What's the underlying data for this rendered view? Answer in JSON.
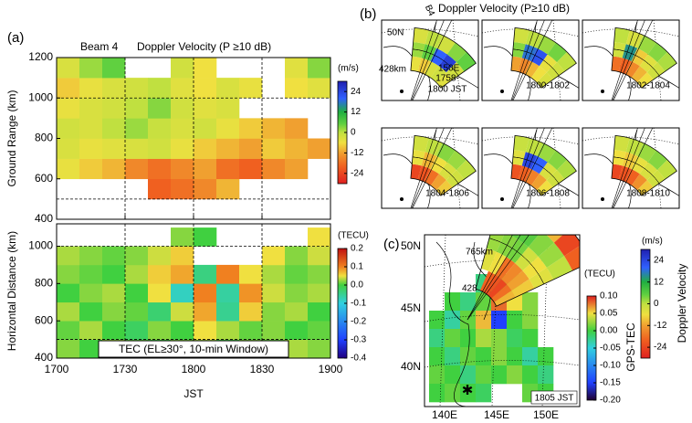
{
  "chart_data": [
    {
      "type": "heatmap",
      "panel_label": "(a)",
      "subtitle": "Beam 4",
      "title": "Doppler Velocity (P ≥10 dB)",
      "ylabel": "Ground Range (km)",
      "xlim": [
        0,
        120
      ],
      "xticks": [
        {
          "value": 0,
          "label": "1700"
        },
        {
          "value": 30,
          "label": "1730"
        },
        {
          "value": 60,
          "label": "1800"
        },
        {
          "value": 90,
          "label": "1830"
        },
        {
          "value": 120,
          "label": "1900"
        }
      ],
      "ylim": [
        400,
        1200
      ],
      "yticks": [
        400,
        600,
        800,
        1000,
        1200
      ],
      "hlines": [
        500,
        1000
      ],
      "x_edges": [
        0,
        10,
        20,
        30,
        40,
        50,
        60,
        70,
        80,
        90,
        100,
        110,
        120
      ],
      "y_edges": [
        400,
        500,
        600,
        700,
        800,
        900,
        1000,
        1100,
        1200
      ],
      "values": [
        [
          null,
          null,
          null,
          null,
          null,
          null,
          null,
          null,
          null,
          null,
          null,
          null
        ],
        [
          null,
          null,
          null,
          null,
          -20,
          -18,
          -15,
          -10,
          null,
          null,
          null,
          null
        ],
        [
          -5,
          -8,
          -10,
          -15,
          -18,
          -15,
          -12,
          -18,
          -20,
          -15,
          -12,
          null
        ],
        [
          -3,
          -5,
          -4,
          -3,
          -2,
          -5,
          -8,
          -10,
          -12,
          -8,
          -10,
          -12
        ],
        [
          -2,
          -3,
          0,
          2,
          -1,
          -3,
          -2,
          -5,
          -8,
          -10,
          -12,
          null
        ],
        [
          -5,
          -3,
          -2,
          0,
          3,
          -2,
          -4,
          -3,
          null,
          null,
          null,
          null
        ],
        [
          -8,
          -5,
          -3,
          -2,
          0,
          -4,
          -6,
          -3,
          -5,
          null,
          -6,
          -4
        ],
        [
          -3,
          2,
          5,
          null,
          null,
          -2,
          -6,
          null,
          null,
          null,
          -4,
          3
        ]
      ],
      "colorbar_label": "(m/s)",
      "clim": [
        -30,
        30
      ],
      "cticks": [
        24,
        12,
        0,
        -12,
        -24
      ],
      "colormap": [
        {
          "value": -30,
          "color": "#e02020"
        },
        {
          "value": -20,
          "color": "#f06020"
        },
        {
          "value": -12,
          "color": "#f0a030"
        },
        {
          "value": -6,
          "color": "#f0e040"
        },
        {
          "value": 0,
          "color": "#c0e040"
        },
        {
          "value": 5,
          "color": "#60d040"
        },
        {
          "value": 12,
          "color": "#20b040"
        },
        {
          "value": 20,
          "color": "#3060ff"
        },
        {
          "value": 30,
          "color": "#2020b0"
        }
      ]
    },
    {
      "type": "heatmap",
      "ylabel": "Horizontal Distance (km)",
      "xlabel": "JST",
      "annotation": "TEC (EL≥30°, 10-min Window)",
      "xlim": [
        0,
        120
      ],
      "ylim": [
        400,
        1120
      ],
      "yticks": [
        400,
        600,
        800,
        1000
      ],
      "hlines": [
        500,
        1000
      ],
      "x_edges": [
        0,
        10,
        20,
        30,
        40,
        50,
        60,
        70,
        80,
        90,
        100,
        110,
        120
      ],
      "y_edges": [
        400,
        500,
        600,
        700,
        800,
        900,
        1000,
        1100
      ],
      "values": [
        [
          0.02,
          0.0,
          0.03,
          0.01,
          0.0,
          0.02,
          0.03,
          0.0,
          0.02,
          0.01,
          0.03,
          0.02
        ],
        [
          0.01,
          0.03,
          0.0,
          -0.02,
          0.02,
          0.0,
          0.05,
          0.03,
          0.01,
          0.02,
          0.0,
          0.01
        ],
        [
          0.03,
          0.0,
          0.02,
          0.01,
          -0.03,
          0.04,
          0.08,
          -0.05,
          0.06,
          0.02,
          0.03,
          0.0
        ],
        [
          0.0,
          0.02,
          0.03,
          0.0,
          0.05,
          -0.08,
          0.1,
          -0.06,
          0.09,
          0.04,
          0.02,
          0.03
        ],
        [
          0.02,
          0.01,
          0.0,
          0.03,
          0.06,
          0.08,
          -0.04,
          0.1,
          0.05,
          0.03,
          0.01,
          0.02
        ],
        [
          0.03,
          0.02,
          0.01,
          0.02,
          0.04,
          0.06,
          null,
          null,
          null,
          0.05,
          0.02,
          0.04
        ],
        [
          null,
          null,
          null,
          null,
          null,
          0.02,
          0.0,
          null,
          null,
          null,
          null,
          0.05
        ]
      ],
      "colorbar_label": "(TECU)",
      "clim": [
        -0.4,
        0.2
      ],
      "cticks": [
        0.2,
        0.1,
        {
          "value": 0,
          "label": "0.0"
        },
        -0.1,
        -0.2,
        -0.3,
        -0.4
      ],
      "colormap": [
        {
          "value": -0.4,
          "color": "#200080"
        },
        {
          "value": -0.3,
          "color": "#2040ff"
        },
        {
          "value": -0.1,
          "color": "#30d0e0"
        },
        {
          "value": 0,
          "color": "#40d040"
        },
        {
          "value": 0.05,
          "color": "#f0e040"
        },
        {
          "value": 0.1,
          "color": "#f08020"
        },
        {
          "value": 0.2,
          "color": "#c01010"
        }
      ]
    },
    {
      "type": "fan-panels",
      "panel_label": "(b)",
      "title": "Doppler Velocity (P≥10 dB)",
      "beam_label": "B4",
      "lat_label": "50N",
      "range_label": "428km",
      "lon_label": "150E",
      "panels": [
        {
          "time": [
            "1758-",
            "1800 JST"
          ],
          "values": [
            [
              -5,
              2,
              -3
            ],
            [
              -8,
              5,
              0
            ],
            [
              -3,
              20,
              -2
            ],
            [
              -2,
              25,
              3
            ],
            [
              -4,
              -2,
              5
            ]
          ]
        },
        {
          "time": [
            "1800-1802"
          ],
          "values": [
            [
              -12,
              3,
              -2
            ],
            [
              -15,
              18,
              0
            ],
            [
              -10,
              22,
              2
            ],
            [
              -6,
              -5,
              4
            ],
            [
              -3,
              -2,
              0
            ]
          ]
        },
        {
          "time": [
            "1802-1804"
          ],
          "values": [
            [
              -18,
              -2,
              0
            ],
            [
              -20,
              15,
              -3
            ],
            [
              -15,
              -8,
              2
            ],
            [
              -10,
              -4,
              3
            ],
            [
              -6,
              -2,
              1
            ]
          ]
        },
        {
          "time": [
            "1804-1806"
          ],
          "values": [
            [
              -24,
              -5,
              -2
            ],
            [
              -22,
              -10,
              0
            ],
            [
              -18,
              -6,
              3
            ],
            [
              -12,
              -3,
              2
            ],
            [
              -8,
              -2,
              0
            ]
          ]
        },
        {
          "time": [
            "1806-1808"
          ],
          "values": [
            [
              -22,
              -4,
              -1
            ],
            [
              -20,
              24,
              0
            ],
            [
              -16,
              20,
              2
            ],
            [
              -12,
              -3,
              3
            ],
            [
              -6,
              -2,
              1
            ]
          ]
        },
        {
          "time": [
            "1808-1810"
          ],
          "values": [
            [
              -24,
              -6,
              -2
            ],
            [
              -22,
              -8,
              0
            ],
            [
              -20,
              -5,
              2
            ],
            [
              -14,
              -3,
              3
            ],
            [
              -8,
              -2,
              0
            ]
          ]
        }
      ]
    },
    {
      "type": "fan-map",
      "panel_label": "(c)",
      "time": "1805 JST",
      "range_labels": [
        "765km",
        "428"
      ],
      "lat_labels": [
        "50N",
        "45N",
        "40N"
      ],
      "lon_labels": [
        "140E",
        "145E",
        "150E"
      ],
      "values": [
        [
          null,
          -4,
          2,
          0,
          -2
        ],
        [
          -20,
          -6,
          3,
          5,
          -3
        ],
        [
          -22,
          -18,
          4,
          6,
          -6
        ],
        [
          -24,
          -15,
          -2,
          3,
          -10
        ],
        [
          -18,
          -12,
          -6,
          2,
          -24
        ],
        [
          -10,
          -8,
          -4,
          0,
          -20
        ]
      ],
      "tec_values": [
        [
          null,
          null,
          null,
          -0.02,
          0.0,
          0.03,
          null,
          null
        ],
        [
          null,
          0.0,
          -0.02,
          0.01,
          0.08,
          0.05,
          0.02,
          null
        ],
        [
          0.0,
          -0.03,
          0.01,
          0.06,
          -0.15,
          0.0,
          0.02,
          null
        ],
        [
          -0.02,
          0.01,
          0.0,
          0.03,
          0.02,
          -0.01,
          0.0,
          null
        ],
        [
          0.0,
          -0.02,
          0.01,
          0.0,
          0.02,
          0.0,
          -0.03,
          0.0
        ],
        [
          0.01,
          0.0,
          -0.02,
          0.01,
          0.0,
          0.02,
          0.0,
          -0.02
        ],
        [
          0.0,
          0.01,
          0.0,
          -0.01,
          null,
          null,
          0.01,
          0.0
        ]
      ],
      "tec_label": "(TECU)",
      "tec_title": "GPS-TEC",
      "tec_clim": [
        -0.2,
        0.1
      ],
      "tec_ticks": [
        {
          "value": 0.1,
          "label": "0.10"
        },
        {
          "value": 0.05,
          "label": "0.05"
        },
        {
          "value": 0,
          "label": "0.00"
        },
        {
          "value": -0.05,
          "label": "-0.05"
        },
        {
          "value": -0.1,
          "label": "-0.10"
        },
        {
          "value": -0.15,
          "label": "-0.15"
        },
        {
          "value": -0.2,
          "label": "-0.20"
        }
      ],
      "tec_colormap": [
        {
          "value": -0.2,
          "color": "#200030"
        },
        {
          "value": -0.15,
          "color": "#2040ff"
        },
        {
          "value": -0.05,
          "color": "#30d0e0"
        },
        {
          "value": 0,
          "color": "#40d040"
        },
        {
          "value": 0.05,
          "color": "#f0e040"
        },
        {
          "value": 0.1,
          "color": "#e02020"
        }
      ],
      "vel_label": "(m/s)",
      "vel_title": "Doppler Velocity",
      "vel_clim": [
        -30,
        30
      ],
      "vel_ticks": [
        24,
        12,
        0,
        -12,
        -24
      ]
    }
  ]
}
